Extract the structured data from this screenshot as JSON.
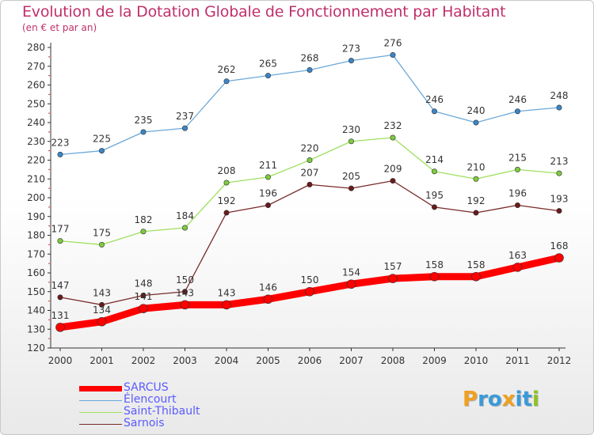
{
  "header": {
    "title": "Evolution de la Dotation Globale de Fonctionnement par Habitant",
    "subtitle": "(en € et par an)"
  },
  "logo": {
    "letters": [
      "P",
      "r",
      "o",
      "x",
      "i",
      "t",
      "i"
    ],
    "colors": [
      "#f0a020",
      "#3a9ad9",
      "#3a9ad9",
      "#f0a020",
      "#3a9ad9",
      "#3a9ad9",
      "#8fc31f"
    ]
  },
  "chart_data": {
    "type": "line",
    "title": "Evolution de la Dotation Globale de Fonctionnement par Habitant",
    "subtitle": "(en € et par an)",
    "x": [
      "2000",
      "2001",
      "2002",
      "2003",
      "2004",
      "2005",
      "2006",
      "2007",
      "2008",
      "2009",
      "2010",
      "2011",
      "2012"
    ],
    "ylim": [
      120,
      280
    ],
    "yticks": [
      120,
      130,
      140,
      150,
      160,
      170,
      180,
      190,
      200,
      210,
      220,
      230,
      240,
      250,
      260,
      270,
      280
    ],
    "grid": false,
    "legend_position": "bottom-left",
    "series": [
      {
        "name": "SARCUS",
        "color": "#ff0000",
        "marker_color": "#ff0000",
        "values": [
          131,
          134,
          141,
          143,
          143,
          146,
          150,
          154,
          157,
          158,
          158,
          163,
          168
        ],
        "thick": true
      },
      {
        "name": "Élencourt",
        "color": "#6aa8d8",
        "marker_color": "#3a86c8",
        "values": [
          223,
          225,
          235,
          237,
          262,
          265,
          268,
          273,
          276,
          246,
          240,
          246,
          248
        ],
        "thick": false
      },
      {
        "name": "Saint-Thibault",
        "color": "#9ee060",
        "marker_color": "#7dcc3c",
        "values": [
          177,
          175,
          182,
          184,
          208,
          211,
          220,
          230,
          232,
          214,
          210,
          215,
          213
        ],
        "thick": false
      },
      {
        "name": "Sarnois",
        "color": "#7a2a2a",
        "marker_color": "#6a1a1a",
        "values": [
          147,
          143,
          148,
          150,
          192,
          196,
          207,
          205,
          209,
          195,
          192,
          196,
          193
        ],
        "thick": false
      }
    ]
  }
}
